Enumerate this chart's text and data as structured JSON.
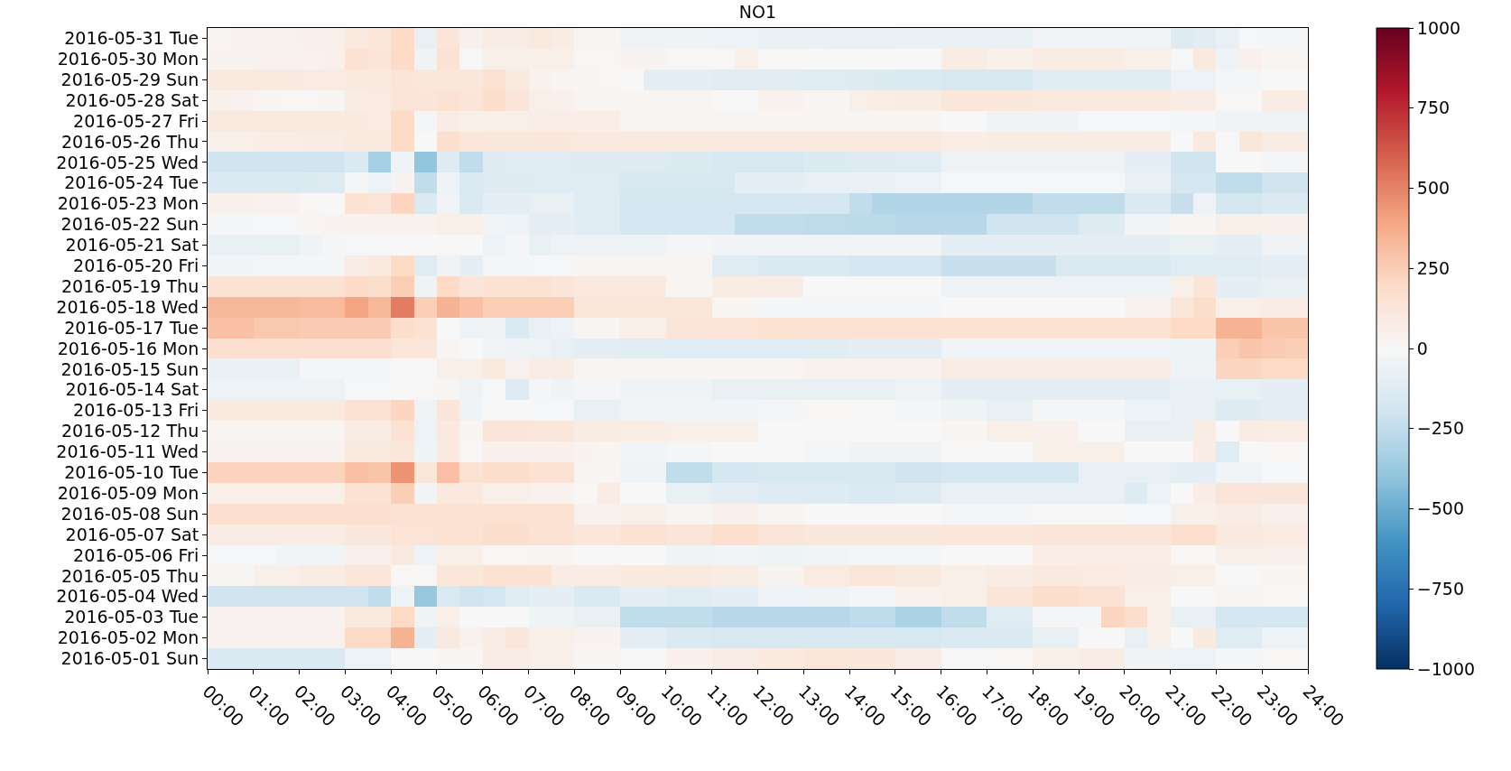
{
  "chart_data": {
    "type": "heatmap",
    "title": "NO1",
    "x": [
      0.25,
      0.75,
      1.25,
      1.75,
      2.25,
      2.75,
      3.25,
      3.75,
      4.25,
      4.75,
      5.25,
      5.75,
      6.25,
      6.75,
      7.25,
      7.75,
      8.25,
      8.75,
      9.25,
      9.75,
      10.25,
      10.75,
      11.25,
      11.75,
      12.25,
      12.75,
      13.25,
      13.75,
      14.25,
      14.75,
      15.25,
      15.75,
      16.25,
      16.75,
      17.25,
      17.75,
      18.25,
      18.75,
      19.25,
      19.75,
      20.25,
      20.75,
      21.25,
      21.75,
      22.25,
      22.75,
      23.25,
      23.75
    ],
    "xlim": [
      0,
      24
    ],
    "xticks": [
      {
        "value": 0,
        "label": "00:00"
      },
      {
        "value": 1,
        "label": "01:00"
      },
      {
        "value": 2,
        "label": "02:00"
      },
      {
        "value": 3,
        "label": "03:00"
      },
      {
        "value": 4,
        "label": "04:00"
      },
      {
        "value": 5,
        "label": "05:00"
      },
      {
        "value": 6,
        "label": "06:00"
      },
      {
        "value": 7,
        "label": "07:00"
      },
      {
        "value": 8,
        "label": "08:00"
      },
      {
        "value": 9,
        "label": "09:00"
      },
      {
        "value": 10,
        "label": "10:00"
      },
      {
        "value": 11,
        "label": "11:00"
      },
      {
        "value": 12,
        "label": "12:00"
      },
      {
        "value": 13,
        "label": "13:00"
      },
      {
        "value": 14,
        "label": "14:00"
      },
      {
        "value": 15,
        "label": "15:00"
      },
      {
        "value": 16,
        "label": "16:00"
      },
      {
        "value": 17,
        "label": "17:00"
      },
      {
        "value": 18,
        "label": "18:00"
      },
      {
        "value": 19,
        "label": "19:00"
      },
      {
        "value": 20,
        "label": "20:00"
      },
      {
        "value": 21,
        "label": "21:00"
      },
      {
        "value": 22,
        "label": "22:00"
      },
      {
        "value": 23,
        "label": "23:00"
      },
      {
        "value": 24,
        "label": "24:00"
      }
    ],
    "y_categories": [
      "2016-05-31 Tue",
      "2016-05-30 Mon",
      "2016-05-29 Sun",
      "2016-05-28 Sat",
      "2016-05-27 Fri",
      "2016-05-26 Thu",
      "2016-05-25 Wed",
      "2016-05-24 Tue",
      "2016-05-23 Mon",
      "2016-05-22 Sun",
      "2016-05-21 Sat",
      "2016-05-20 Fri",
      "2016-05-19 Thu",
      "2016-05-18 Wed",
      "2016-05-17 Tue",
      "2016-05-16 Mon",
      "2016-05-15 Sun",
      "2016-05-14 Sat",
      "2016-05-13 Fri",
      "2016-05-12 Thu",
      "2016-05-11 Wed",
      "2016-05-10 Tue",
      "2016-05-09 Mon",
      "2016-05-08 Sun",
      "2016-05-07 Sat",
      "2016-05-06 Fri",
      "2016-05-05 Thu",
      "2016-05-04 Wed",
      "2016-05-03 Tue",
      "2016-05-02 Mon",
      "2016-05-01 Sun"
    ],
    "cells": [
      [
        20,
        30,
        40,
        40,
        50,
        50,
        100,
        120,
        200,
        -80,
        130,
        50,
        80,
        80,
        100,
        80,
        20,
        20,
        -40,
        -50,
        -50,
        -50,
        -60,
        -60,
        -70,
        -70,
        -70,
        -80,
        -80,
        -80,
        -70,
        -70,
        -70,
        -70,
        -70,
        -70,
        -30,
        -30,
        -30,
        -30,
        -30,
        -30,
        -130,
        -110,
        -80,
        -10,
        -20,
        -20
      ],
      [
        30,
        30,
        40,
        40,
        40,
        50,
        150,
        130,
        200,
        -40,
        150,
        10,
        60,
        60,
        60,
        60,
        10,
        10,
        30,
        30,
        10,
        10,
        10,
        60,
        10,
        10,
        0,
        0,
        0,
        0,
        0,
        0,
        80,
        80,
        50,
        50,
        80,
        80,
        80,
        80,
        60,
        60,
        -10,
        100,
        -60,
        50,
        20,
        20
      ],
      [
        100,
        100,
        100,
        100,
        90,
        90,
        100,
        100,
        130,
        120,
        120,
        120,
        150,
        100,
        40,
        20,
        20,
        10,
        0,
        -100,
        -100,
        -100,
        -110,
        -110,
        -110,
        -110,
        -120,
        -120,
        -130,
        -140,
        -150,
        -150,
        -170,
        -170,
        -170,
        -170,
        -120,
        -120,
        -120,
        -120,
        -120,
        -120,
        -60,
        -60,
        -20,
        -20,
        0,
        0
      ],
      [
        50,
        40,
        20,
        10,
        10,
        20,
        80,
        90,
        140,
        130,
        150,
        130,
        180,
        130,
        60,
        50,
        20,
        20,
        20,
        20,
        20,
        20,
        0,
        0,
        40,
        40,
        20,
        20,
        60,
        70,
        80,
        80,
        120,
        120,
        120,
        120,
        100,
        100,
        100,
        100,
        100,
        100,
        80,
        80,
        10,
        10,
        80,
        80
      ],
      [
        100,
        100,
        100,
        100,
        100,
        100,
        100,
        90,
        200,
        -20,
        80,
        60,
        60,
        60,
        70,
        70,
        70,
        70,
        20,
        20,
        20,
        20,
        20,
        20,
        20,
        20,
        20,
        20,
        20,
        20,
        20,
        20,
        0,
        0,
        -40,
        -40,
        -40,
        -40,
        -10,
        -10,
        -10,
        -10,
        -20,
        -20,
        -40,
        -40,
        -40,
        -40
      ],
      [
        50,
        60,
        70,
        70,
        80,
        80,
        100,
        100,
        200,
        0,
        170,
        120,
        110,
        110,
        110,
        110,
        100,
        100,
        100,
        100,
        100,
        100,
        100,
        100,
        100,
        100,
        100,
        100,
        100,
        100,
        100,
        100,
        70,
        70,
        80,
        80,
        80,
        80,
        80,
        80,
        80,
        80,
        0,
        100,
        0,
        120,
        80,
        80
      ],
      [
        -200,
        -200,
        -200,
        -200,
        -200,
        -200,
        -150,
        -330,
        -50,
        -400,
        -130,
        -250,
        -130,
        -120,
        -120,
        -120,
        -130,
        -130,
        -130,
        -130,
        -140,
        -140,
        -170,
        -170,
        -170,
        -170,
        -140,
        -140,
        -130,
        -130,
        -120,
        -120,
        -40,
        -40,
        -40,
        -40,
        -40,
        -40,
        -40,
        -40,
        -100,
        -100,
        -200,
        -200,
        0,
        0,
        -20,
        -20
      ],
      [
        -150,
        -150,
        -150,
        -150,
        -140,
        -130,
        -20,
        -60,
        30,
        -250,
        -50,
        -150,
        -130,
        -130,
        -120,
        -120,
        -120,
        -120,
        -170,
        -170,
        -170,
        -170,
        -170,
        -100,
        -100,
        -100,
        -80,
        -80,
        -70,
        -70,
        -60,
        -60,
        -10,
        -10,
        -10,
        -10,
        -10,
        -10,
        -10,
        -10,
        -80,
        -80,
        -180,
        -180,
        -250,
        -250,
        -200,
        -200
      ],
      [
        50,
        50,
        40,
        40,
        10,
        0,
        150,
        130,
        220,
        -150,
        -30,
        -150,
        -100,
        -100,
        -80,
        -80,
        -120,
        -120,
        -180,
        -180,
        -180,
        -180,
        -180,
        -180,
        -180,
        -180,
        -180,
        -180,
        -250,
        -300,
        -300,
        -300,
        -300,
        -300,
        -300,
        -300,
        -250,
        -250,
        -250,
        -250,
        -150,
        -150,
        -230,
        -60,
        -180,
        -180,
        -150,
        -150
      ],
      [
        -20,
        -20,
        -10,
        -10,
        20,
        30,
        40,
        40,
        40,
        40,
        60,
        60,
        -30,
        -60,
        -100,
        -100,
        -120,
        -120,
        -180,
        -180,
        -180,
        -180,
        -180,
        -250,
        -250,
        -250,
        -260,
        -260,
        -270,
        -270,
        -280,
        -280,
        -280,
        -280,
        -200,
        -200,
        -200,
        -200,
        -130,
        -130,
        -30,
        -30,
        20,
        20,
        60,
        60,
        50,
        50
      ],
      [
        -80,
        -80,
        -80,
        -80,
        -40,
        -20,
        -10,
        0,
        0,
        0,
        10,
        0,
        -60,
        -20,
        -80,
        -60,
        -60,
        -60,
        -60,
        -60,
        -20,
        -20,
        -30,
        -30,
        -30,
        -30,
        -30,
        -30,
        -30,
        -30,
        -30,
        -30,
        -100,
        -100,
        -100,
        -100,
        -100,
        -100,
        -100,
        -100,
        -100,
        -100,
        -80,
        -80,
        -100,
        -100,
        -40,
        -40
      ],
      [
        -30,
        -30,
        -20,
        -20,
        -20,
        -20,
        80,
        100,
        200,
        -120,
        -40,
        -100,
        -20,
        -20,
        -10,
        -10,
        20,
        20,
        20,
        20,
        20,
        20,
        -120,
        -120,
        -150,
        -150,
        -150,
        -150,
        -180,
        -180,
        -180,
        -180,
        -230,
        -230,
        -230,
        -230,
        -230,
        -150,
        -150,
        -150,
        -150,
        -150,
        -120,
        -120,
        -120,
        -120,
        -100,
        -100
      ],
      [
        150,
        150,
        150,
        150,
        150,
        150,
        200,
        180,
        250,
        -50,
        200,
        130,
        150,
        150,
        150,
        130,
        100,
        100,
        100,
        100,
        20,
        20,
        80,
        80,
        80,
        80,
        0,
        0,
        0,
        0,
        0,
        0,
        -60,
        -60,
        -60,
        -60,
        -60,
        -60,
        -60,
        -60,
        -60,
        -60,
        60,
        130,
        -100,
        -100,
        -80,
        -80
      ],
      [
        330,
        330,
        330,
        330,
        320,
        320,
        400,
        330,
        520,
        250,
        350,
        300,
        250,
        250,
        250,
        250,
        120,
        120,
        120,
        120,
        120,
        120,
        20,
        20,
        -20,
        -20,
        -20,
        -20,
        -20,
        -20,
        -20,
        -20,
        0,
        0,
        0,
        0,
        0,
        0,
        0,
        0,
        40,
        40,
        120,
        180,
        60,
        60,
        80,
        80
      ],
      [
        300,
        300,
        270,
        270,
        260,
        260,
        260,
        260,
        180,
        150,
        0,
        -60,
        -40,
        -150,
        -80,
        -60,
        20,
        20,
        60,
        60,
        130,
        130,
        140,
        140,
        150,
        150,
        150,
        150,
        150,
        150,
        150,
        150,
        150,
        150,
        150,
        150,
        150,
        150,
        150,
        150,
        150,
        150,
        200,
        200,
        350,
        350,
        280,
        280
      ],
      [
        170,
        170,
        170,
        170,
        170,
        170,
        170,
        170,
        120,
        120,
        20,
        0,
        -30,
        -40,
        -60,
        -80,
        -100,
        -100,
        -110,
        -110,
        -120,
        -120,
        -120,
        -120,
        -120,
        -120,
        -110,
        -110,
        -100,
        -100,
        -100,
        -100,
        -30,
        -30,
        -30,
        -30,
        -30,
        -30,
        -30,
        -30,
        -30,
        -30,
        -50,
        -50,
        250,
        280,
        260,
        250
      ],
      [
        -80,
        -80,
        -80,
        -80,
        -20,
        -20,
        -20,
        -20,
        0,
        0,
        60,
        60,
        100,
        40,
        80,
        80,
        20,
        20,
        20,
        20,
        20,
        20,
        20,
        20,
        20,
        20,
        40,
        40,
        40,
        40,
        40,
        40,
        80,
        80,
        80,
        80,
        80,
        80,
        80,
        80,
        80,
        80,
        -40,
        -40,
        220,
        220,
        200,
        200
      ],
      [
        -60,
        -60,
        -60,
        -60,
        -60,
        -60,
        -10,
        -10,
        10,
        10,
        20,
        -40,
        -10,
        -130,
        -20,
        -50,
        -20,
        -20,
        -40,
        -40,
        -40,
        -40,
        -80,
        -80,
        -80,
        -80,
        -80,
        -80,
        -80,
        -80,
        -60,
        -60,
        -100,
        -100,
        -100,
        -100,
        -100,
        -100,
        -100,
        -100,
        -100,
        -100,
        -80,
        -80,
        -80,
        -80,
        -100,
        -100
      ],
      [
        100,
        100,
        100,
        100,
        100,
        100,
        150,
        150,
        220,
        -40,
        130,
        -50,
        0,
        0,
        -10,
        -10,
        -80,
        -80,
        -30,
        -30,
        -30,
        -30,
        -30,
        -30,
        -20,
        -20,
        10,
        10,
        0,
        0,
        -20,
        -20,
        -50,
        -50,
        -80,
        -80,
        -20,
        -20,
        -20,
        -20,
        -60,
        -60,
        -80,
        -80,
        -130,
        -130,
        -100,
        -100
      ],
      [
        20,
        20,
        20,
        20,
        20,
        20,
        80,
        80,
        150,
        -60,
        100,
        20,
        130,
        130,
        120,
        120,
        80,
        80,
        70,
        70,
        60,
        60,
        60,
        60,
        0,
        0,
        0,
        0,
        0,
        0,
        0,
        0,
        20,
        20,
        60,
        60,
        50,
        50,
        0,
        0,
        -80,
        -80,
        -80,
        80,
        0,
        80,
        70,
        70
      ],
      [
        30,
        30,
        30,
        30,
        30,
        30,
        100,
        100,
        120,
        -50,
        100,
        10,
        50,
        50,
        50,
        50,
        30,
        20,
        -30,
        -30,
        -20,
        -20,
        0,
        0,
        0,
        0,
        -20,
        -20,
        -40,
        -40,
        -40,
        -40,
        0,
        0,
        0,
        0,
        60,
        60,
        60,
        60,
        0,
        0,
        0,
        80,
        -120,
        0,
        10,
        10
      ],
      [
        230,
        230,
        230,
        230,
        230,
        230,
        300,
        280,
        450,
        120,
        300,
        150,
        180,
        180,
        150,
        150,
        20,
        20,
        -40,
        -40,
        -250,
        -250,
        -180,
        -180,
        -170,
        -170,
        -170,
        -170,
        -170,
        -170,
        -200,
        -200,
        -180,
        -180,
        -180,
        -180,
        -180,
        -180,
        -80,
        -80,
        -80,
        -80,
        -100,
        -100,
        -30,
        -30,
        -10,
        -10
      ],
      [
        60,
        60,
        60,
        60,
        60,
        60,
        150,
        150,
        250,
        -30,
        100,
        100,
        60,
        60,
        40,
        40,
        10,
        80,
        0,
        0,
        -80,
        -80,
        -100,
        -100,
        -130,
        -130,
        -130,
        -130,
        -150,
        -150,
        -130,
        -130,
        -80,
        -80,
        -80,
        -80,
        -80,
        -80,
        -80,
        -80,
        -130,
        -60,
        0,
        80,
        130,
        130,
        130,
        130
      ],
      [
        170,
        170,
        170,
        170,
        170,
        170,
        170,
        170,
        150,
        150,
        150,
        150,
        150,
        150,
        150,
        150,
        40,
        40,
        60,
        60,
        20,
        20,
        50,
        50,
        20,
        20,
        0,
        0,
        0,
        0,
        0,
        0,
        -20,
        -20,
        -20,
        -20,
        0,
        0,
        0,
        0,
        -10,
        -10,
        60,
        60,
        80,
        80,
        50,
        50
      ],
      [
        80,
        80,
        80,
        80,
        80,
        80,
        110,
        110,
        140,
        140,
        150,
        150,
        180,
        180,
        150,
        150,
        120,
        120,
        150,
        150,
        130,
        130,
        170,
        170,
        130,
        130,
        110,
        110,
        110,
        110,
        110,
        110,
        120,
        120,
        120,
        120,
        130,
        130,
        130,
        130,
        130,
        130,
        170,
        170,
        100,
        100,
        90,
        90
      ],
      [
        -10,
        -10,
        -10,
        -30,
        -30,
        -30,
        50,
        50,
        100,
        -60,
        60,
        60,
        10,
        10,
        20,
        20,
        0,
        0,
        0,
        0,
        -40,
        -40,
        -30,
        -30,
        -50,
        -50,
        -30,
        -30,
        -20,
        -20,
        -20,
        -20,
        0,
        0,
        0,
        0,
        70,
        70,
        70,
        70,
        70,
        70,
        10,
        10,
        60,
        60,
        50,
        50
      ],
      [
        20,
        20,
        60,
        60,
        80,
        80,
        120,
        120,
        10,
        10,
        120,
        120,
        150,
        150,
        150,
        80,
        80,
        80,
        100,
        100,
        100,
        100,
        80,
        80,
        30,
        30,
        90,
        90,
        120,
        120,
        100,
        100,
        60,
        60,
        80,
        80,
        100,
        100,
        90,
        90,
        80,
        80,
        60,
        60,
        0,
        0,
        20,
        20
      ],
      [
        -200,
        -200,
        -200,
        -200,
        -200,
        -200,
        -200,
        -250,
        -50,
        -380,
        -150,
        -200,
        -180,
        -120,
        -100,
        -100,
        -150,
        -150,
        -100,
        -100,
        -120,
        -120,
        -100,
        -100,
        -60,
        -60,
        -40,
        -40,
        -20,
        -20,
        40,
        40,
        60,
        60,
        130,
        130,
        180,
        180,
        150,
        150,
        60,
        60,
        0,
        0,
        20,
        20,
        10,
        10
      ],
      [
        30,
        30,
        30,
        30,
        30,
        30,
        100,
        100,
        200,
        -50,
        60,
        0,
        0,
        0,
        -50,
        -50,
        -80,
        -80,
        -250,
        -250,
        -250,
        -250,
        -280,
        -280,
        -280,
        -280,
        -280,
        -280,
        -260,
        -260,
        -320,
        -320,
        -250,
        -250,
        -120,
        -120,
        -20,
        -20,
        -20,
        220,
        180,
        60,
        -80,
        -80,
        -180,
        -180,
        -180,
        -180
      ],
      [
        40,
        40,
        40,
        40,
        40,
        40,
        200,
        200,
        350,
        -100,
        100,
        40,
        80,
        120,
        60,
        60,
        30,
        30,
        -100,
        -100,
        -150,
        -150,
        -170,
        -170,
        -170,
        -170,
        -170,
        -170,
        -170,
        -170,
        -170,
        -170,
        -150,
        -150,
        -150,
        -150,
        -80,
        -80,
        0,
        0,
        -80,
        60,
        0,
        100,
        -120,
        -120,
        -60,
        -60
      ],
      [
        -150,
        -150,
        -150,
        -150,
        -150,
        -150,
        -60,
        -60,
        0,
        0,
        20,
        20,
        80,
        80,
        60,
        60,
        20,
        20,
        0,
        0,
        50,
        50,
        80,
        80,
        100,
        100,
        120,
        120,
        110,
        110,
        80,
        80,
        0,
        0,
        10,
        10,
        60,
        60,
        80,
        80,
        -40,
        -40,
        -60,
        -60,
        -20,
        -20,
        10,
        10
      ]
    ],
    "clim": [
      -1000,
      1000
    ],
    "cticks": [
      {
        "value": -1000,
        "label": "−1000"
      },
      {
        "value": -750,
        "label": "−750"
      },
      {
        "value": -500,
        "label": "−500"
      },
      {
        "value": -250,
        "label": "−250"
      },
      0,
      250,
      500,
      750,
      1000
    ]
  }
}
